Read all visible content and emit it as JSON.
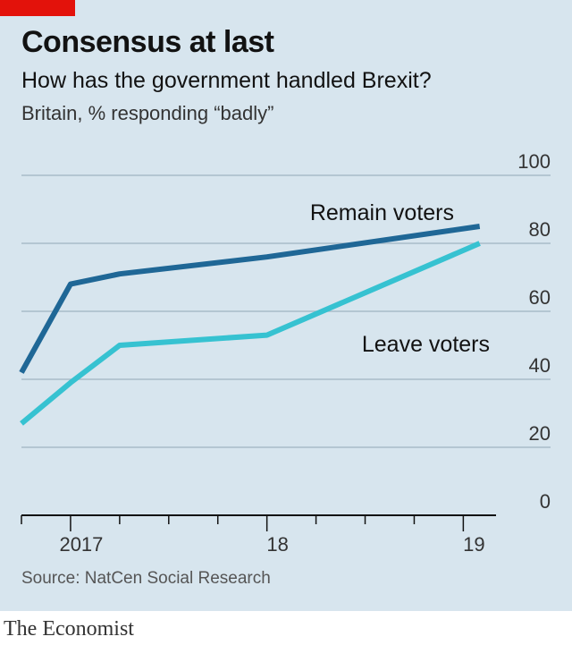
{
  "header": {
    "title": "Consensus at last",
    "subtitle": "How has the government handled Brexit?",
    "unit": "Britain, % responding “badly”"
  },
  "source": "Source: NatCen Social Research",
  "footer": "The Economist",
  "colors": {
    "background": "#d7e5ee",
    "brand_red": "#e3120b",
    "remain": "#1f6796",
    "leave": "#36c2d1",
    "gridline": "#a9bcc9",
    "axis": "#121212"
  },
  "chart_data": {
    "type": "line",
    "title": "Consensus at last",
    "subtitle": "How has the government handled Brexit?",
    "ylabel": "Britain, % responding “badly”",
    "x_domain": [
      "2016-10",
      "2019-03"
    ],
    "y_ticks": [
      0,
      20,
      40,
      60,
      80,
      100
    ],
    "x_tick_labels": [
      {
        "label": "2017",
        "x": "2017-01"
      },
      {
        "label": "18",
        "x": "2018-01"
      },
      {
        "label": "19",
        "x": "2019-01"
      }
    ],
    "ylim": [
      0,
      100
    ],
    "grid": true,
    "series": [
      {
        "name": "Remain voters",
        "x": [
          "2016-10",
          "2017-01",
          "2017-04",
          "2018-01",
          "2019-02"
        ],
        "values": [
          42,
          68,
          71,
          76,
          85
        ]
      },
      {
        "name": "Leave voters",
        "x": [
          "2016-10",
          "2017-01",
          "2017-04",
          "2018-01",
          "2019-02"
        ],
        "values": [
          27,
          39,
          50,
          53,
          80
        ]
      }
    ]
  }
}
